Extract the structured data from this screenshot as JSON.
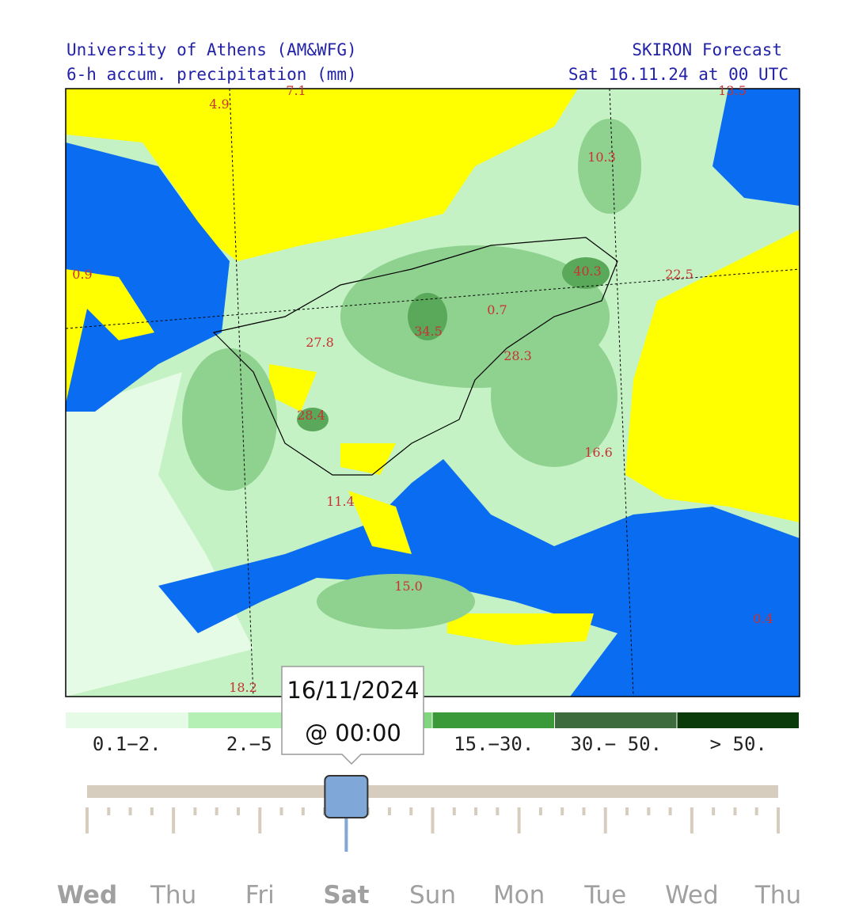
{
  "header": {
    "left_title": "University of Athens (AM&WFG)",
    "left_subtitle": "6-h accum. precipitation (mm)",
    "right_title": "SKIRON Forecast",
    "right_subtitle": "Sat 16.11.24 at 00 UTC"
  },
  "map_labels": [
    "4.9",
    "7.1",
    "13.5",
    "10.3",
    "0.9",
    "40.3",
    "22.5",
    "0.7",
    "34.5",
    "27.8",
    "28.3",
    "28.4",
    "16.6",
    "11.4",
    "15.0",
    "0.4",
    "18.2"
  ],
  "legend": [
    {
      "color": "#e6fbe6",
      "label": "0.1−2."
    },
    {
      "color": "#b4f0b4",
      "label": "2.−5"
    },
    {
      "color": "#7fd67f"
    },
    {
      "color": "#3a9a3a",
      "label": "15.−30."
    },
    {
      "color": "#3d6b3d",
      "label": "30.− 50."
    },
    {
      "color": "#0b3a0b",
      "label": "> 50."
    }
  ],
  "tooltip": {
    "date": "16/11/2024",
    "time": "@ 00:00"
  },
  "days": [
    "Wed",
    "Thu",
    "Fri",
    "Sat",
    "Sun",
    "Mon",
    "Tue",
    "Wed",
    "Thu"
  ],
  "selected_day": 3
}
